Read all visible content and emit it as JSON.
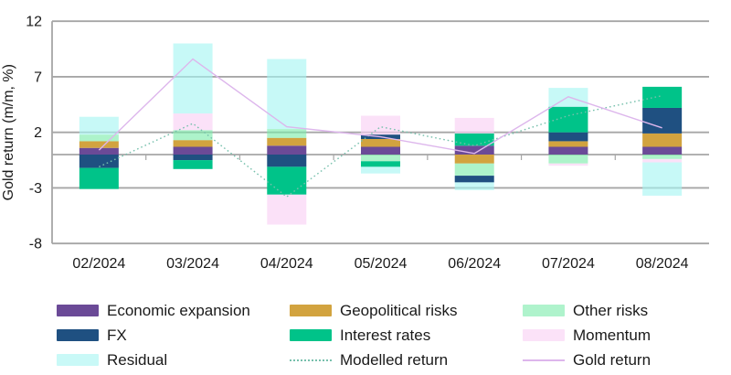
{
  "chart_data": {
    "type": "bar",
    "stacked": true,
    "title": "",
    "xlabel": "",
    "ylabel": "Gold return (m/m, %)",
    "ylim": [
      -8,
      12
    ],
    "yticks": [
      12,
      7,
      2,
      -3,
      -8
    ],
    "grid": true,
    "legend_position": "bottom",
    "categories": [
      "02/2024",
      "03/2024",
      "04/2024",
      "05/2024",
      "06/2024",
      "07/2024",
      "08/2024"
    ],
    "series": [
      {
        "name": "Economic expansion",
        "color": "#6b4a97",
        "values": [
          0.6,
          0.7,
          0.8,
          0.7,
          0.8,
          0.7,
          0.7
        ]
      },
      {
        "name": "Geopolitical risks",
        "color": "#d2a33f",
        "values": [
          0.6,
          0.6,
          0.7,
          0.7,
          -0.8,
          0.5,
          1.2
        ]
      },
      {
        "name": "Other risks",
        "color": "#aff3cc",
        "fill": "rgba(122,235,170,0.62)",
        "values": [
          0.6,
          0.9,
          0.8,
          -0.6,
          -1.1,
          -0.8,
          -0.4
        ]
      },
      {
        "name": "FX",
        "color": "#1f5081",
        "values": [
          -1.2,
          -0.5,
          -1.1,
          0.4,
          -0.6,
          0.8,
          2.3
        ]
      },
      {
        "name": "Interest rates",
        "color": "#00c389",
        "values": [
          -1.9,
          -0.8,
          -2.5,
          -0.5,
          1.1,
          2.3,
          1.9
        ]
      },
      {
        "name": "Momentum",
        "color": "#fbe2f8",
        "fill": "rgba(248,207,243,0.62)",
        "values": [
          0,
          1.5,
          -2.7,
          1.7,
          1.4,
          -0.2,
          -0.3
        ]
      },
      {
        "name": "Residual",
        "color": "#c9f9f7",
        "fill": "rgba(165,245,242,0.62)",
        "values": [
          1.6,
          6.3,
          6.3,
          -0.6,
          -0.7,
          1.7,
          -3.0
        ]
      }
    ],
    "lines": [
      {
        "name": "Modelled return",
        "color": "#76c0ac",
        "style": "dotted",
        "values": [
          -1.1,
          2.8,
          -3.8,
          2.5,
          0.8,
          3.5,
          5.3
        ]
      },
      {
        "name": "Gold return",
        "color": "#ddb6ec",
        "style": "solid",
        "values": [
          0.4,
          8.6,
          2.5,
          1.6,
          0.1,
          5.2,
          2.4
        ]
      }
    ]
  },
  "legend": {
    "items": [
      {
        "label": "Economic expansion",
        "swatch": "box",
        "color": "#6b4a97"
      },
      {
        "label": "Geopolitical risks",
        "swatch": "box",
        "color": "#d2a33f"
      },
      {
        "label": "Other risks",
        "swatch": "box",
        "color": "#aff3cc"
      },
      {
        "label": "FX",
        "swatch": "box",
        "color": "#1f5081"
      },
      {
        "label": "Interest rates",
        "swatch": "box",
        "color": "#00c389"
      },
      {
        "label": "Momentum",
        "swatch": "box",
        "color": "#fbe2f8"
      },
      {
        "label": "Residual",
        "swatch": "box",
        "color": "#c9f9f7"
      },
      {
        "label": "Modelled return",
        "swatch": "dotted-line",
        "color": "#76c0ac"
      },
      {
        "label": "Gold return",
        "swatch": "solid-line",
        "color": "#ddb6ec"
      }
    ]
  },
  "colors": {
    "gridline": "#a6a6a6",
    "axis_text": "#1a1a1a"
  }
}
